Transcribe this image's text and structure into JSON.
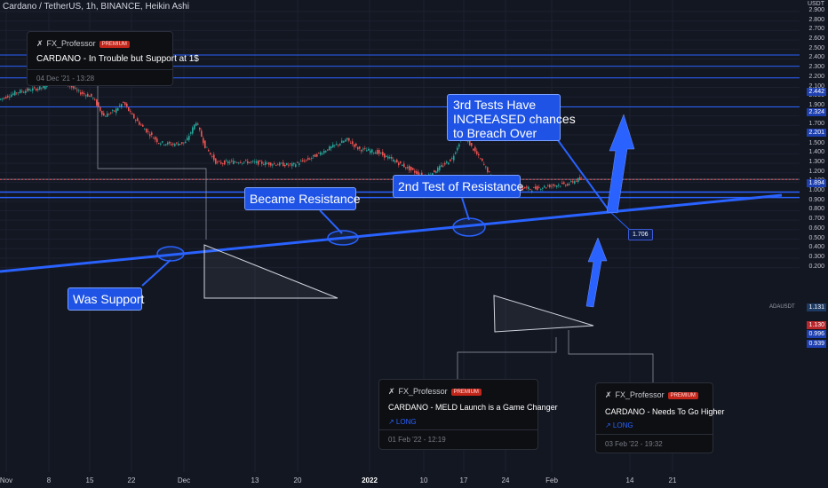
{
  "header": {
    "title": "Cardano / TetherUS, 1h, BINANCE, Heikin Ashi"
  },
  "price_axis": {
    "unit": "USDT",
    "ticks": [
      "2.900",
      "2.800",
      "2.700",
      "2.600",
      "2.500",
      "2.400",
      "2.300",
      "2.200",
      "2.100",
      "2.000",
      "1.900",
      "1.800",
      "1.700",
      "1.600",
      "1.500",
      "1.400",
      "1.300",
      "1.200",
      "1.100",
      "1.000",
      "0.900",
      "0.800",
      "0.700",
      "0.600",
      "0.500",
      "0.400",
      "0.300",
      "0.200"
    ],
    "labels": {
      "p2442": "2.442",
      "p2324": "2.324",
      "p2201": "2.201",
      "p1894": "1.894",
      "p1131": "1.131",
      "p1130": "1.130",
      "p0996": "0.996",
      "p0939": "0.939",
      "ticker": "ADAUSDT"
    }
  },
  "time_axis": {
    "labels": [
      "Nov",
      "8",
      "15",
      "22",
      "Dec",
      "13",
      "20",
      "2022",
      "10",
      "17",
      "24",
      "Feb",
      "14",
      "21"
    ]
  },
  "callouts": {
    "was_support": "Was Support",
    "became_resistance": "Became Resistance",
    "second_test": "2nd Test of Resistance",
    "third_test": [
      "3rd Tests Have",
      "INCREASED chances",
      "to Breach Over"
    ],
    "projection": "1.706"
  },
  "idea_cards": [
    {
      "author": "FX_Professor",
      "badge": "PREMIUM",
      "title": "CARDANO - In Trouble but Support at 1$",
      "long": "",
      "date": "04 Dec '21 - 13:28"
    },
    {
      "author": "FX_Professor",
      "badge": "PREMIUM",
      "title": "CARDANO - MELD Launch is a Game Changer",
      "long": "↗ LONG",
      "date": "01 Feb '22 - 12:19"
    },
    {
      "author": "FX_Professor",
      "badge": "PREMIUM",
      "title": "CARDANO - Needs To Go Higher",
      "long": "↗ LONG",
      "date": "03 Feb '22 - 19:32"
    }
  ],
  "colors": {
    "background": "#131722",
    "bull": "#26a69a",
    "bear": "#ef5350",
    "trendline": "#2962ff",
    "callout": "#1e53e5"
  },
  "chart_data": {
    "type": "candlestick",
    "title": "Cardano / TetherUS, 1h, BINANCE, Heikin Ashi",
    "ylabel": "USDT",
    "ylim": [
      0.1,
      3.0
    ],
    "x": [
      "Nov",
      "8",
      "15",
      "22",
      "Dec",
      "13",
      "20",
      "2022",
      "10",
      "17",
      "24",
      "Feb",
      "14",
      "21"
    ],
    "price_path": [
      {
        "x": "Nov",
        "y": 1.97
      },
      {
        "x": "4",
        "y": 2.05
      },
      {
        "x": "8",
        "y": 2.42
      },
      {
        "x": "10",
        "y": 2.1
      },
      {
        "x": "15",
        "y": 2.0
      },
      {
        "x": "17",
        "y": 1.8
      },
      {
        "x": "20",
        "y": 1.94
      },
      {
        "x": "22",
        "y": 1.75
      },
      {
        "x": "26",
        "y": 1.52
      },
      {
        "x": "28",
        "y": 1.52
      },
      {
        "x": "Dec",
        "y": 1.74
      },
      {
        "x": "2",
        "y": 1.5
      },
      {
        "x": "5",
        "y": 1.3
      },
      {
        "x": "13",
        "y": 1.32
      },
      {
        "x": "20",
        "y": 1.28
      },
      {
        "x": "24",
        "y": 1.45
      },
      {
        "x": "27",
        "y": 1.55
      },
      {
        "x": "29",
        "y": 1.43
      },
      {
        "x": "2022",
        "y": 1.36
      },
      {
        "x": "5",
        "y": 1.25
      },
      {
        "x": "10",
        "y": 1.15
      },
      {
        "x": "13",
        "y": 1.28
      },
      {
        "x": "17",
        "y": 1.6
      },
      {
        "x": "19",
        "y": 1.42
      },
      {
        "x": "21",
        "y": 1.1
      },
      {
        "x": "24",
        "y": 1.03
      },
      {
        "x": "28",
        "y": 1.05
      },
      {
        "x": "Feb",
        "y": 1.07
      },
      {
        "x": "3",
        "y": 1.13
      }
    ],
    "horizontal_levels": [
      2.442,
      2.324,
      2.201,
      1.894,
      1.131,
      1.13,
      0.996,
      0.939
    ],
    "trendline": {
      "from": {
        "x": "Nov",
        "y": 1.43
      },
      "to": {
        "x": "21",
        "y": 1.8
      }
    },
    "projected_cross": 1.706,
    "grid": true
  }
}
